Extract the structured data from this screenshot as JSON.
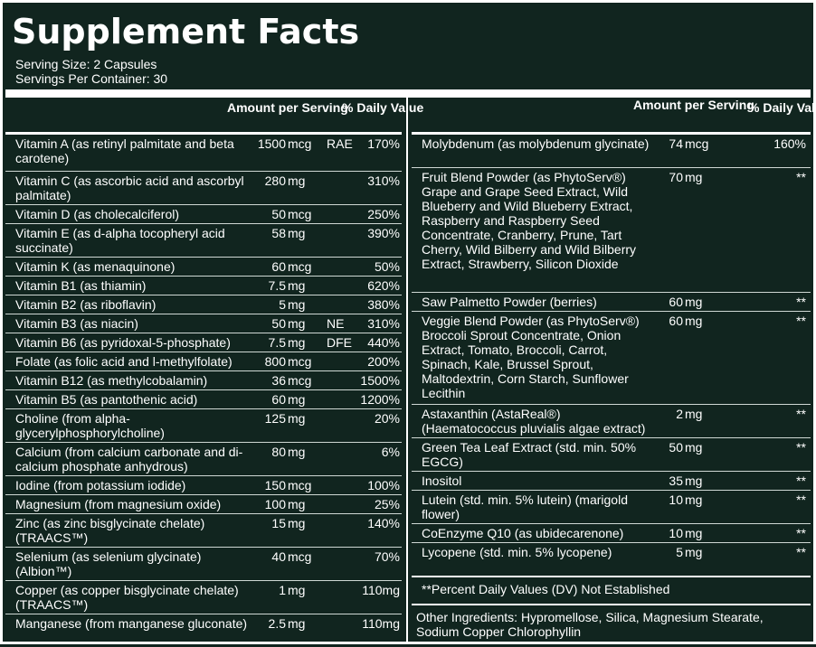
{
  "title": "Supplement Facts",
  "serving_size": "Serving Size: 2 Capsules",
  "servings_per_container": "Servings Per Container: 30",
  "header": {
    "amount": "Amount per Serving",
    "dv": "% Daily Value"
  },
  "left_rows": [
    {
      "name": "Vitamin A (as retinyl palmitate and beta carotene)",
      "amount": "1500",
      "unit": "mcg",
      "extra": "RAE",
      "dv": "170%"
    },
    {
      "name": "Vitamin C (as ascorbic acid and ascorbyl palmitate)",
      "amount": "280",
      "unit": "mg",
      "extra": "",
      "dv": "310%"
    },
    {
      "name": "Vitamin D (as cholecalciferol)",
      "amount": "50",
      "unit": "mcg",
      "extra": "",
      "dv": "250%"
    },
    {
      "name": "Vitamin E (as d-alpha tocopheryl acid succinate)",
      "amount": "58",
      "unit": "mg",
      "extra": "",
      "dv": "390%"
    },
    {
      "name": "Vitamin K (as menaquinone)",
      "amount": "60",
      "unit": "mcg",
      "extra": "",
      "dv": "50%"
    },
    {
      "name": "Vitamin B1 (as thiamin)",
      "amount": "7.5",
      "unit": "mg",
      "extra": "",
      "dv": "620%"
    },
    {
      "name": "Vitamin B2 (as riboflavin)",
      "amount": "5",
      "unit": "mg",
      "extra": "",
      "dv": "380%"
    },
    {
      "name": "Vitamin B3 (as niacin)",
      "amount": "50",
      "unit": "mg",
      "extra": "NE",
      "dv": "310%"
    },
    {
      "name": "Vitamin B6 (as pyridoxal-5-phosphate)",
      "amount": "7.5",
      "unit": "mg",
      "extra": "DFE",
      "dv": "440%"
    },
    {
      "name": "Folate (as folic acid and l-methylfolate)",
      "amount": "800",
      "unit": "mcg",
      "extra": "",
      "dv": "200%"
    },
    {
      "name": "Vitamin B12 (as methylcobalamin)",
      "amount": "36",
      "unit": "mcg",
      "extra": "",
      "dv": "1500%"
    },
    {
      "name": "Vitamin B5 (as pantothenic acid)",
      "amount": "60",
      "unit": "mg",
      "extra": "",
      "dv": "1200%"
    },
    {
      "name": "Choline (from alpha-glycerylphosphorylcholine)",
      "amount": "125",
      "unit": "mg",
      "extra": "",
      "dv": "20%"
    },
    {
      "name": "Calcium (from calcium carbonate and di-calcium phosphate anhydrous)",
      "amount": "80",
      "unit": "mg",
      "extra": "",
      "dv": "6%"
    },
    {
      "name": "Iodine (from potassium iodide)",
      "amount": "150",
      "unit": "mcg",
      "extra": "",
      "dv": "100%"
    },
    {
      "name": "Magnesium (from magnesium oxide)",
      "amount": "100",
      "unit": "mg",
      "extra": "",
      "dv": "25%"
    },
    {
      "name": "Zinc (as zinc bisglycinate chelate) (TRAACS™)",
      "amount": "15",
      "unit": "mg",
      "extra": "",
      "dv": "140%"
    },
    {
      "name": "Selenium (as selenium glycinate) (Albion™)",
      "amount": "40",
      "unit": "mcg",
      "extra": "",
      "dv": "70%"
    },
    {
      "name": "Copper (as copper bisglycinate chelate) (TRAACS™)",
      "amount": "1",
      "unit": "mg",
      "extra": "",
      "dv": "110mg"
    },
    {
      "name": "Manganese (from manganese gluconate)",
      "amount": "2.5",
      "unit": "mg",
      "extra": "",
      "dv": "110mg"
    }
  ],
  "right_rows": [
    {
      "name": "Molybdenum (as molybdenum glycinate)",
      "amount": "74",
      "unit": "mcg",
      "dv": "160%"
    },
    {
      "name": "Fruit Blend Powder (as PhytoServ®) Grape and Grape Seed Extract, Wild Blueberry and Wild Blueberry Extract, Raspberry and Raspberry Seed Concentrate, Cranberry, Prune, Tart Cherry, Wild Bilberry and Wild Bilberry Extract, Strawberry, Silicon Dioxide",
      "amount": "70",
      "unit": "mg",
      "dv": "**"
    },
    {
      "name": "Saw Palmetto Powder (berries)",
      "amount": "60",
      "unit": "mg",
      "dv": "**"
    },
    {
      "name": "Veggie Blend Powder (as PhytoServ®) Broccoli Sprout Concentrate, Onion Extract, Tomato, Broccoli, Carrot, Spinach, Kale, Brussel Sprout, Maltodextrin, Corn Starch, Sunflower Lecithin",
      "amount": "60",
      "unit": "mg",
      "dv": "**"
    },
    {
      "name": "Astaxanthin (AstaReal®) (Haematococcus pluvialis algae extract)",
      "amount": "2",
      "unit": "mg",
      "dv": "**"
    },
    {
      "name": "Green Tea Leaf Extract (std. min. 50% EGCG)",
      "amount": "50",
      "unit": "mg",
      "dv": "**"
    },
    {
      "name": "Inositol",
      "amount": "35",
      "unit": "mg",
      "dv": "**"
    },
    {
      "name": "Lutein (std. min. 5% lutein) (marigold flower)",
      "amount": "10",
      "unit": "mg",
      "dv": "**"
    },
    {
      "name": "CoEnzyme Q10 (as ubidecarenone)",
      "amount": "10",
      "unit": "mg",
      "dv": "**"
    },
    {
      "name": "Lycopene (std. min. 5% lycopene)",
      "amount": "5",
      "unit": "mg",
      "dv": "**"
    }
  ],
  "footnote": "**Percent Daily Values (DV) Not Established",
  "other_ingredients": "Other Ingredients: Hypromellose, Silica, Magnesium Stearate, Sodium Copper Chlorophyllin"
}
